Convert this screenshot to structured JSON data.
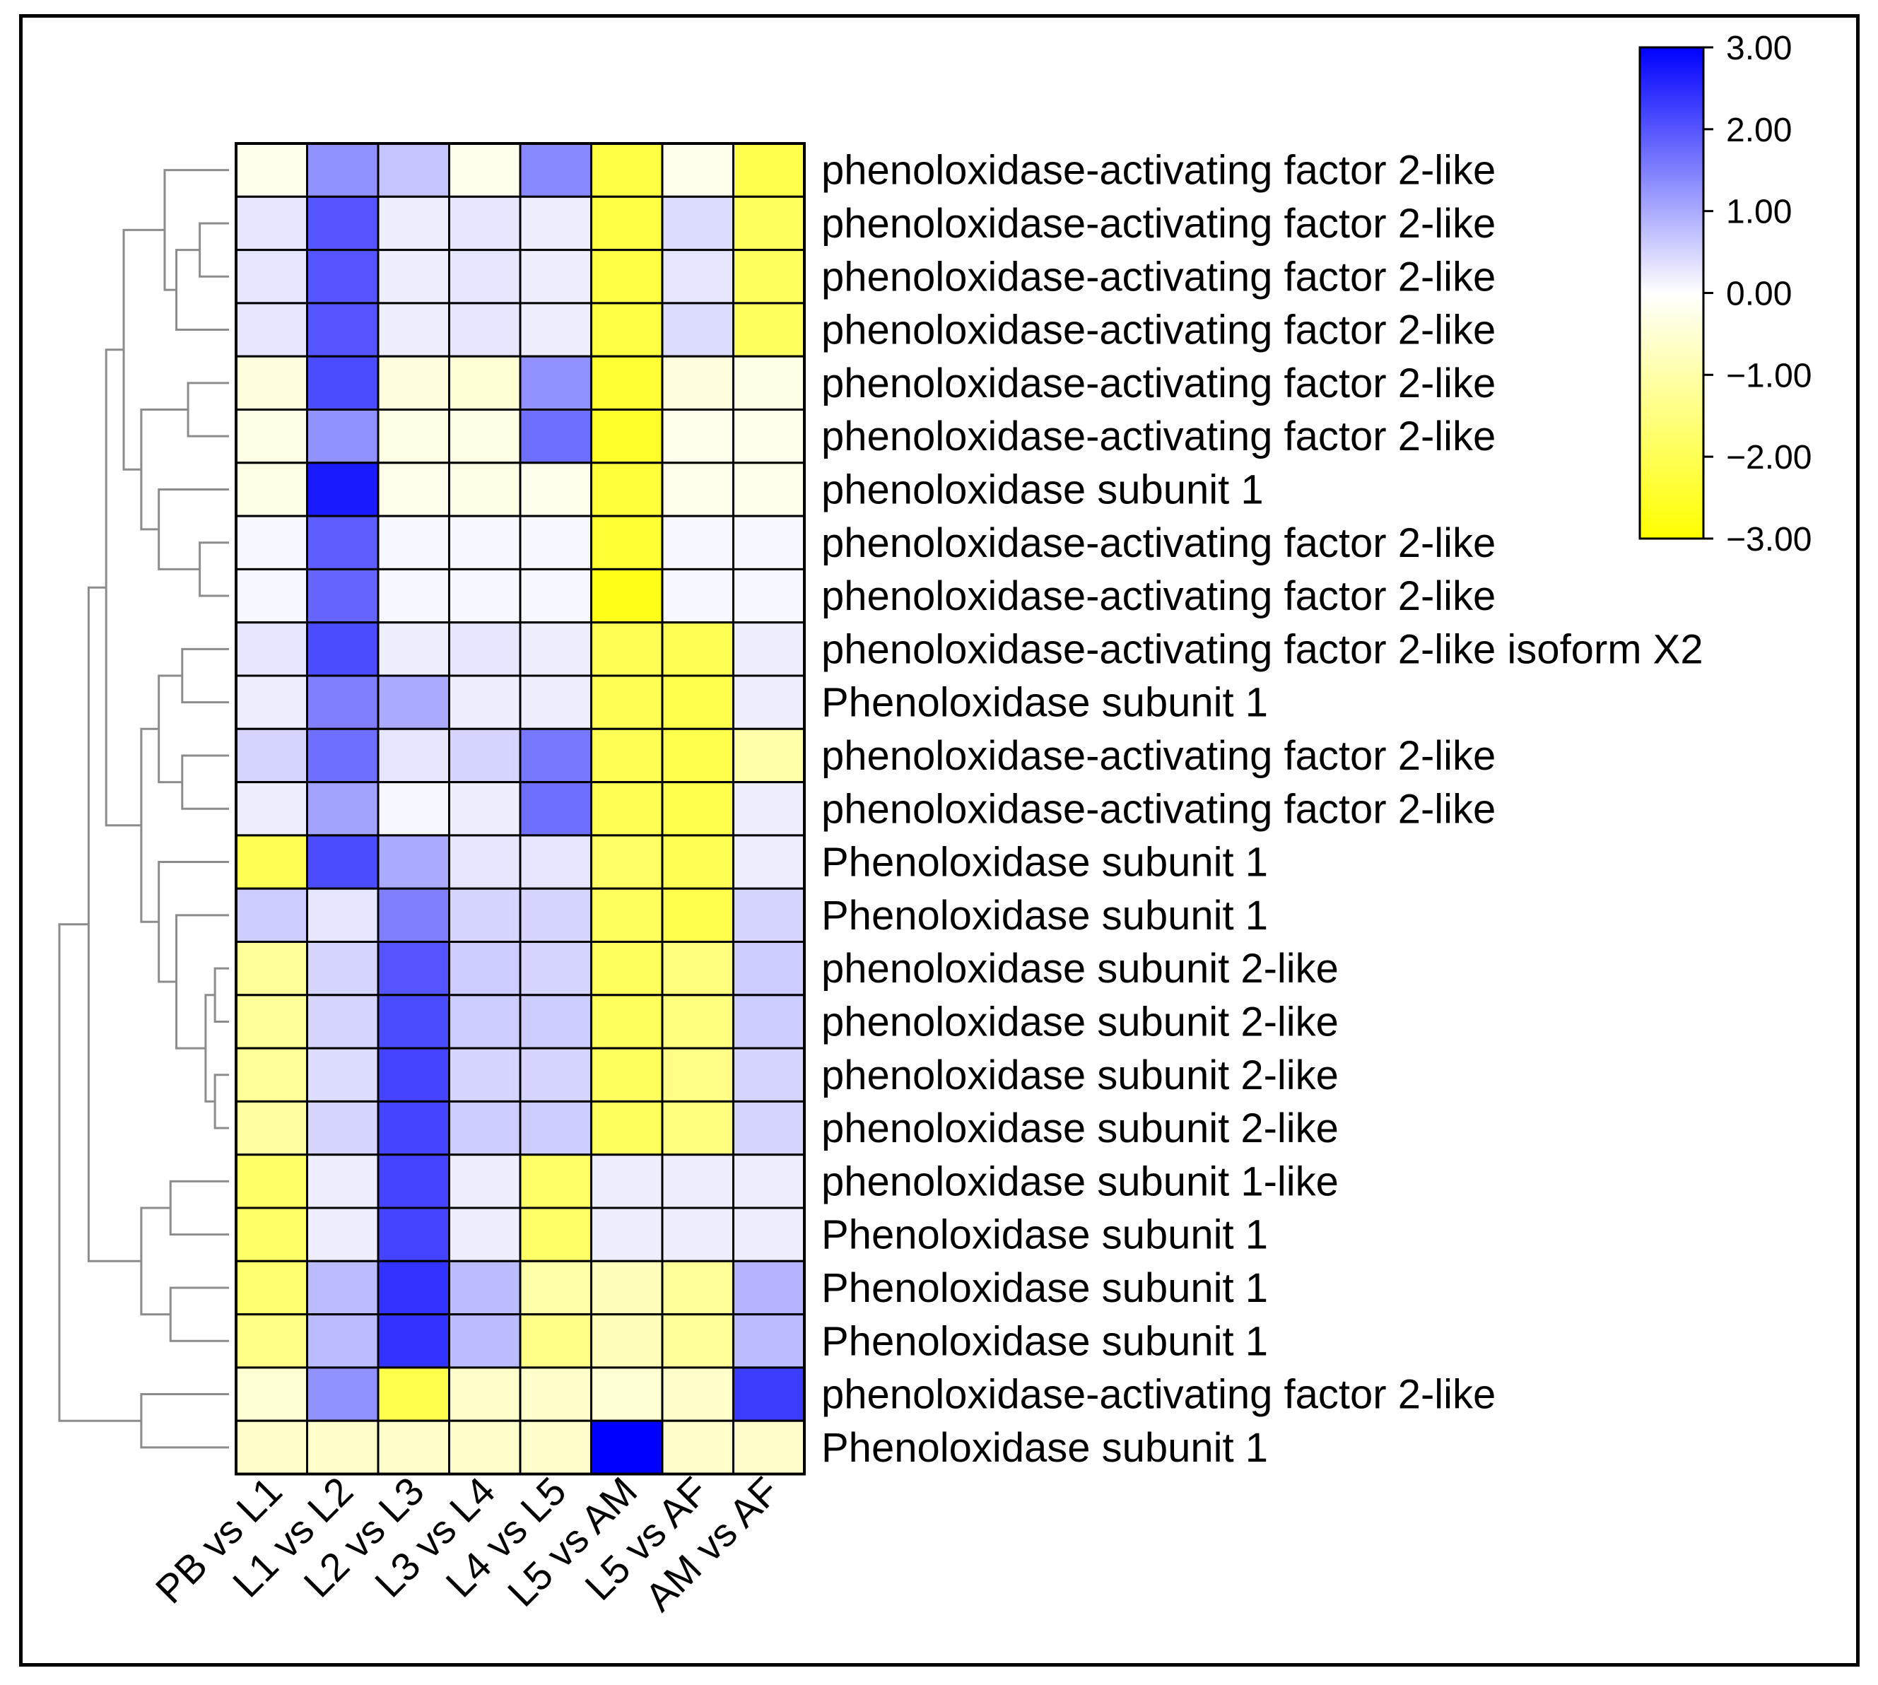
{
  "chart_data": {
    "type": "heatmap",
    "title": "",
    "colormap": {
      "low": "#ffff00",
      "mid": "#ffffff",
      "high": "#0000ff",
      "range": [
        -3,
        3
      ]
    },
    "legend": {
      "position": "top-right",
      "ticks": [
        "3.00",
        "2.00",
        "1.00",
        "0.00",
        "−1.00",
        "−2.00",
        "−3.00"
      ],
      "tick_values": [
        3,
        2,
        1,
        0,
        -1,
        -2,
        -3
      ]
    },
    "columns": [
      "PB vs L1",
      "L1 vs L2",
      "L2 vs L3",
      "L3 vs L4",
      "L4 vs L5",
      "L5 vs AM",
      "L5 vs AF",
      "AM vs AF"
    ],
    "rows": [
      "phenoloxidase-activating factor 2-like",
      "phenoloxidase-activating factor 2-like",
      "phenoloxidase-activating factor 2-like",
      "phenoloxidase-activating factor 2-like",
      "phenoloxidase-activating factor 2-like",
      "phenoloxidase-activating factor 2-like",
      "phenoloxidase subunit 1",
      "phenoloxidase-activating factor 2-like",
      "phenoloxidase-activating factor 2-like",
      "phenoloxidase-activating factor 2-like isoform X2",
      "Phenoloxidase subunit 1",
      "phenoloxidase-activating factor 2-like",
      "phenoloxidase-activating factor 2-like",
      "Phenoloxidase subunit 1",
      "Phenoloxidase subunit 1",
      "phenoloxidase subunit 2-like",
      "phenoloxidase subunit 2-like",
      "phenoloxidase subunit 2-like",
      "phenoloxidase subunit 2-like",
      "phenoloxidase subunit 1-like",
      "Phenoloxidase subunit 1",
      "Phenoloxidase subunit 1",
      "Phenoloxidase subunit 1",
      "phenoloxidase-activating factor 2-like",
      "Phenoloxidase subunit 1"
    ],
    "values": [
      [
        -0.2,
        1.3,
        0.7,
        -0.2,
        1.4,
        -2.2,
        -0.2,
        -2.1
      ],
      [
        0.3,
        2.0,
        0.2,
        0.3,
        0.2,
        -2.2,
        0.4,
        -1.9
      ],
      [
        0.3,
        2.0,
        0.2,
        0.3,
        0.2,
        -2.2,
        0.3,
        -1.9
      ],
      [
        0.3,
        2.0,
        0.2,
        0.3,
        0.2,
        -2.2,
        0.4,
        -1.9
      ],
      [
        -0.4,
        2.1,
        -0.4,
        -0.5,
        1.3,
        -2.4,
        -0.4,
        -0.3
      ],
      [
        -0.3,
        1.3,
        -0.3,
        -0.3,
        1.7,
        -2.5,
        -0.2,
        -0.2
      ],
      [
        -0.3,
        2.7,
        -0.2,
        -0.3,
        -0.2,
        -2.3,
        -0.2,
        -0.2
      ],
      [
        0.1,
        1.9,
        0.1,
        0.1,
        0.1,
        -2.4,
        0.1,
        0.1
      ],
      [
        0.1,
        1.8,
        0.1,
        0.1,
        0.1,
        -2.7,
        0.1,
        0.1
      ],
      [
        0.3,
        2.1,
        0.2,
        0.3,
        0.2,
        -2.0,
        -2.0,
        0.2
      ],
      [
        0.2,
        1.5,
        1.0,
        0.2,
        0.2,
        -2.0,
        -2.1,
        0.2
      ],
      [
        0.5,
        1.7,
        0.3,
        0.5,
        1.6,
        -2.0,
        -2.1,
        -1.0
      ],
      [
        0.2,
        1.1,
        0.1,
        0.2,
        1.7,
        -2.0,
        -2.1,
        0.2
      ],
      [
        -2.0,
        2.1,
        1.0,
        0.3,
        0.3,
        -1.8,
        -2.0,
        0.2
      ],
      [
        0.6,
        0.3,
        1.5,
        0.5,
        0.5,
        -1.9,
        -2.1,
        0.5
      ],
      [
        -1.2,
        0.5,
        2.0,
        0.6,
        0.5,
        -1.9,
        -1.5,
        0.6
      ],
      [
        -1.2,
        0.5,
        2.1,
        0.6,
        0.6,
        -1.9,
        -1.5,
        0.6
      ],
      [
        -1.2,
        0.4,
        2.2,
        0.5,
        0.5,
        -1.9,
        -1.4,
        0.5
      ],
      [
        -1.1,
        0.5,
        2.2,
        0.6,
        0.6,
        -1.9,
        -1.5,
        0.5
      ],
      [
        -1.8,
        0.2,
        2.2,
        0.2,
        -1.8,
        0.2,
        0.2,
        0.2
      ],
      [
        -1.8,
        0.2,
        2.2,
        0.2,
        -1.8,
        0.2,
        0.2,
        0.2
      ],
      [
        -1.7,
        0.8,
        2.4,
        0.8,
        -1.0,
        -0.8,
        -1.2,
        0.9
      ],
      [
        -1.4,
        0.8,
        2.4,
        0.8,
        -1.4,
        -0.8,
        -1.2,
        0.8
      ],
      [
        -0.5,
        1.3,
        -2.1,
        -0.6,
        -0.6,
        -0.5,
        -0.6,
        2.3
      ],
      [
        -0.6,
        -0.6,
        -0.6,
        -0.6,
        -0.6,
        3.0,
        -0.6,
        -0.6
      ]
    ],
    "dendrogram": {
      "side": "left",
      "merges": [
        [
          1,
          2,
          0.25
        ],
        [
          25,
          3,
          0.45
        ],
        [
          0,
          26,
          0.55
        ],
        [
          4,
          5,
          0.35
        ],
        [
          7,
          8,
          0.25
        ],
        [
          6,
          29,
          0.6
        ],
        [
          28,
          30,
          0.75
        ],
        [
          27,
          31,
          0.9
        ],
        [
          9,
          10,
          0.4
        ],
        [
          11,
          12,
          0.4
        ],
        [
          33,
          34,
          0.6
        ],
        [
          15,
          16,
          0.12
        ],
        [
          17,
          18,
          0.12
        ],
        [
          36,
          37,
          0.2
        ],
        [
          14,
          38,
          0.45
        ],
        [
          13,
          39,
          0.6
        ],
        [
          35,
          40,
          0.75
        ],
        [
          32,
          41,
          1.05
        ],
        [
          19,
          20,
          0.5
        ],
        [
          21,
          22,
          0.5
        ],
        [
          43,
          44,
          0.75
        ],
        [
          42,
          45,
          1.2
        ],
        [
          23,
          24,
          0.75
        ],
        [
          46,
          47,
          1.45
        ]
      ]
    }
  }
}
